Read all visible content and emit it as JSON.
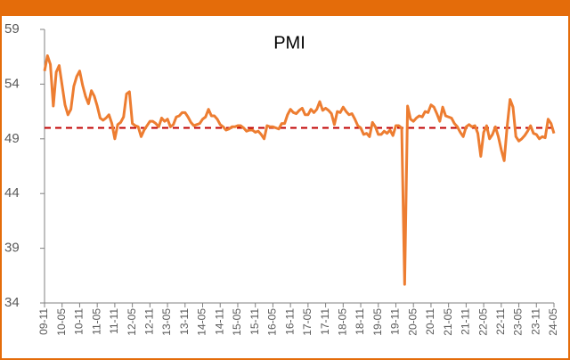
{
  "chart_data": {
    "type": "line",
    "title": "PMI",
    "categories": [
      "09-11",
      null,
      null,
      null,
      null,
      null,
      "10-05",
      null,
      null,
      null,
      null,
      null,
      "10-11",
      null,
      null,
      null,
      null,
      null,
      "11-05",
      null,
      null,
      null,
      null,
      null,
      "11-11",
      null,
      null,
      null,
      null,
      null,
      "12-05",
      null,
      null,
      null,
      null,
      null,
      "12-11",
      null,
      null,
      null,
      null,
      null,
      "13-05",
      null,
      null,
      null,
      null,
      null,
      "13-11",
      null,
      null,
      null,
      null,
      null,
      "14-05",
      null,
      null,
      null,
      null,
      null,
      "14-11",
      null,
      null,
      null,
      null,
      null,
      "15-05",
      null,
      null,
      null,
      null,
      null,
      "15-11",
      null,
      null,
      null,
      null,
      null,
      "16-05",
      null,
      null,
      null,
      null,
      null,
      "16-11",
      null,
      null,
      null,
      null,
      null,
      "17-05",
      null,
      null,
      null,
      null,
      null,
      "17-11",
      null,
      null,
      null,
      null,
      null,
      "18-05",
      null,
      null,
      null,
      null,
      null,
      "18-11",
      null,
      null,
      null,
      null,
      null,
      "19-05",
      null,
      null,
      null,
      null,
      null,
      "19-11",
      null,
      null,
      null,
      null,
      null,
      "20-05",
      null,
      null,
      null,
      null,
      null,
      "20-11",
      null,
      null,
      null,
      null,
      null,
      "21-05",
      null,
      null,
      null,
      null,
      null,
      "21-11",
      null,
      null,
      null,
      null,
      null,
      "22-05",
      null,
      null,
      null,
      null,
      null,
      "22-11",
      null,
      null,
      null,
      null,
      null,
      "23-05",
      null,
      null,
      null,
      null,
      null,
      "23-11",
      null,
      null,
      null,
      null,
      null,
      "24-05"
    ],
    "series": [
      {
        "name": "PMI",
        "color": "#ed7d31",
        "values": [
          55.2,
          56.6,
          55.8,
          52.0,
          55.1,
          55.7,
          53.9,
          52.1,
          51.2,
          51.7,
          53.8,
          54.7,
          55.2,
          53.9,
          52.9,
          52.2,
          53.4,
          52.9,
          52.0,
          50.9,
          50.7,
          50.9,
          51.2,
          50.4,
          49.0,
          50.3,
          50.5,
          51.0,
          53.1,
          53.3,
          50.4,
          50.2,
          50.1,
          49.2,
          49.8,
          50.2,
          50.6,
          50.6,
          50.4,
          50.1,
          50.9,
          50.6,
          50.8,
          50.1,
          50.3,
          51.0,
          51.1,
          51.4,
          51.4,
          51.0,
          50.5,
          50.2,
          50.3,
          50.4,
          50.8,
          51.0,
          51.7,
          51.1,
          51.1,
          50.8,
          50.3,
          50.1,
          49.8,
          49.9,
          50.1,
          50.1,
          50.2,
          50.2,
          50.0,
          49.7,
          49.8,
          49.8,
          49.6,
          49.7,
          49.4,
          49.0,
          50.2,
          50.1,
          50.1,
          50.0,
          49.9,
          50.4,
          50.4,
          51.2,
          51.7,
          51.4,
          51.3,
          51.6,
          51.8,
          51.2,
          51.2,
          51.7,
          51.4,
          51.7,
          52.4,
          51.6,
          51.8,
          51.6,
          51.3,
          50.3,
          51.5,
          51.4,
          51.9,
          51.5,
          51.2,
          51.3,
          50.8,
          50.2,
          50.0,
          49.4,
          49.5,
          49.2,
          50.5,
          50.1,
          49.4,
          49.4,
          49.7,
          49.5,
          49.8,
          49.3,
          50.2,
          50.2,
          50.0,
          35.7,
          52.0,
          50.8,
          50.6,
          50.9,
          51.1,
          51.0,
          51.5,
          51.4,
          52.1,
          51.9,
          51.3,
          50.6,
          51.9,
          51.1,
          51.0,
          50.9,
          50.4,
          50.1,
          49.6,
          49.2,
          50.1,
          50.3,
          50.1,
          50.2,
          49.5,
          47.4,
          49.6,
          50.2,
          49.0,
          49.4,
          50.1,
          49.2,
          48.0,
          47.0,
          50.1,
          52.6,
          51.9,
          49.2,
          48.8,
          49.0,
          49.3,
          49.7,
          50.2,
          49.5,
          49.4,
          49.0,
          49.2,
          49.1,
          50.8,
          50.4,
          49.5
        ]
      }
    ],
    "reference_line": {
      "value": 50,
      "color": "#c00000"
    },
    "ylim": [
      34,
      59
    ],
    "yticks": [
      34,
      39,
      44,
      49,
      54,
      59
    ],
    "grid": false
  }
}
